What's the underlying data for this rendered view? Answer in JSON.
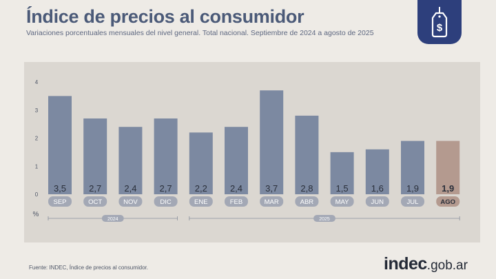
{
  "header": {
    "title": "Índice de precios al consumidor",
    "subtitle": "Variaciones porcentuales mensuales del nivel general. Total nacional. Septiembre de 2024 a agosto de 2025"
  },
  "badge": {
    "icon": "price-tag-dollar-icon",
    "color": "#2d3f7c"
  },
  "footer": {
    "source": "Fuente: INDEC, Índice de precios al consumidor.",
    "brand_main": "indec",
    "brand_suffix": ".gob.ar"
  },
  "colors": {
    "bar": "#7c89a1",
    "bar_highlight": "#b49a8f",
    "label_pill": "#a3a8b5",
    "label_pill_highlight": "#b49a8f",
    "text": "#2a2f3a"
  },
  "chart_data": {
    "type": "bar",
    "title": "Índice de precios al consumidor",
    "ylabel": "%",
    "xlabel": "",
    "ylim": [
      0,
      4
    ],
    "yticks": [
      0,
      1,
      2,
      3,
      4
    ],
    "grid": false,
    "categories": [
      "SEP",
      "OCT",
      "NOV",
      "DIC",
      "ENE",
      "FEB",
      "MAR",
      "ABR",
      "MAY",
      "JUN",
      "JUL",
      "AGO"
    ],
    "values": [
      3.5,
      2.7,
      2.4,
      2.7,
      2.2,
      2.4,
      3.7,
      2.8,
      1.5,
      1.6,
      1.9,
      1.9
    ],
    "value_labels": [
      "3,5",
      "2,7",
      "2,4",
      "2,7",
      "2,2",
      "2,4",
      "3,7",
      "2,8",
      "1,5",
      "1,6",
      "1,9",
      "1,9"
    ],
    "highlight": "AGO",
    "year_groups": [
      {
        "label": "2024",
        "start": 0,
        "end": 3
      },
      {
        "label": "2025",
        "start": 4,
        "end": 11
      }
    ]
  }
}
